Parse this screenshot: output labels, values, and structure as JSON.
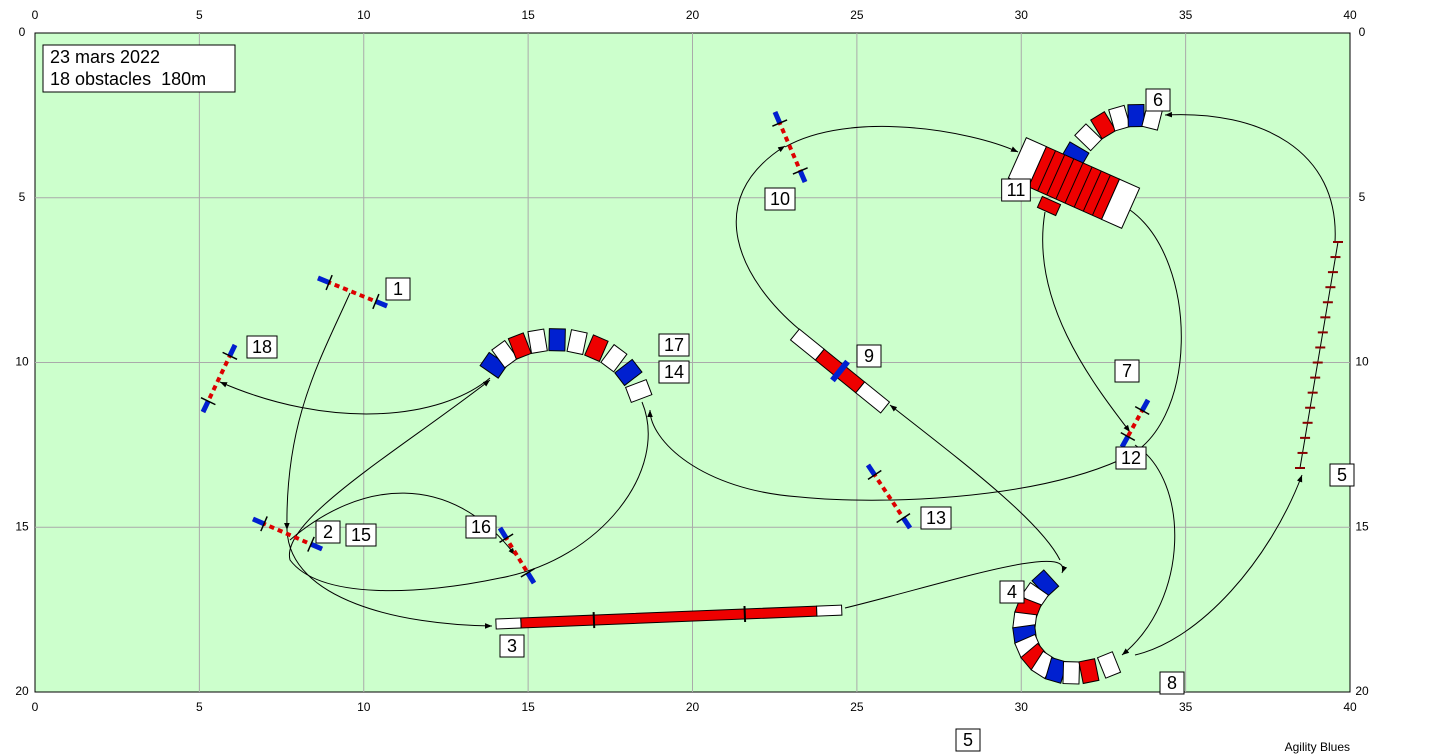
{
  "header": {
    "date": "23 mars 2022",
    "summary": "18 obstacles  180m"
  },
  "axes": {
    "x_ticks": [
      0,
      5,
      10,
      15,
      20,
      25,
      30,
      35,
      40
    ],
    "y_ticks": [
      0,
      5,
      10,
      15,
      20
    ]
  },
  "numbers": [
    "1",
    "18",
    "2",
    "15",
    "16",
    "3",
    "17",
    "14",
    "9",
    "10",
    "13",
    "11",
    "6",
    "7",
    "12",
    "4",
    "8",
    "5",
    "5"
  ],
  "footer": "Agility Blues"
}
